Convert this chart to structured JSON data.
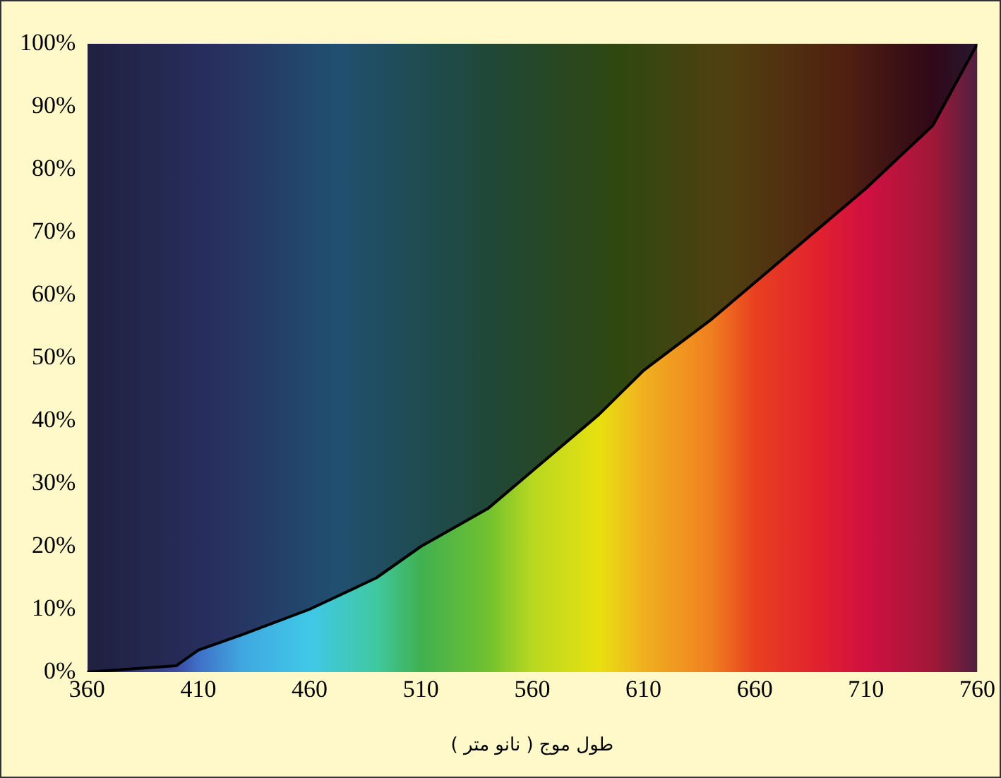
{
  "chart_data": {
    "type": "area",
    "xlabel": "طول موج ( نانو متر )",
    "x": [
      360,
      400,
      410,
      430,
      460,
      490,
      510,
      540,
      560,
      590,
      610,
      640,
      660,
      690,
      710,
      740,
      760
    ],
    "series": [
      {
        "color": "#000000",
        "values": [
          0,
          1,
          3.5,
          6,
          10,
          15,
          20,
          26,
          32,
          41,
          48,
          56,
          62,
          71,
          77,
          87,
          100
        ],
        "colors": [
          "#2a2a5a",
          "#3a4aa0",
          "#4070c8",
          "#40a8e0",
          "#40c8e8",
          "#40c8a0",
          "#40b050",
          "#70c030",
          "#b8d820",
          "#e8e010",
          "#f0b020",
          "#f08020",
          "#e84020",
          "#e02030",
          "#d01040",
          "#a01838",
          "#502040"
        ]
      }
    ],
    "xlim": [
      360,
      760
    ],
    "xticks": [
      360,
      410,
      460,
      510,
      560,
      610,
      660,
      710,
      760
    ],
    "ylim": [
      0,
      100
    ],
    "yticks": [
      {
        "value": 0,
        "label": "0%"
      },
      {
        "value": 10,
        "label": "10%"
      },
      {
        "value": 20,
        "label": "20%"
      },
      {
        "value": 30,
        "label": "30%"
      },
      {
        "value": 40,
        "label": "40%"
      },
      {
        "value": 50,
        "label": "50%"
      },
      {
        "value": 60,
        "label": "60%"
      },
      {
        "value": 70,
        "label": "70%"
      },
      {
        "value": 80,
        "label": "80%"
      },
      {
        "value": 90,
        "label": "90%"
      },
      {
        "value": 100,
        "label": "100%"
      }
    ],
    "grid": false,
    "legend": false,
    "marker": "none",
    "line_style": "solid"
  }
}
